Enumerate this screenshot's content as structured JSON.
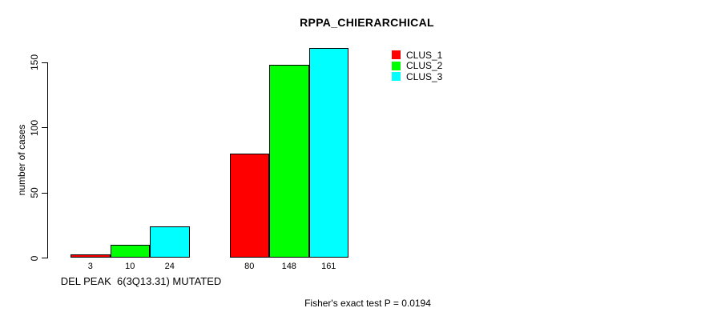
{
  "chart_data": {
    "type": "bar",
    "title": "RPPA_CHIERARCHICAL",
    "ylabel": "number of cases",
    "xlabel": "DEL PEAK  6(3Q13.31) MUTATED",
    "footer": "Fisher's exact test P = 0.0194",
    "ylim": [
      0,
      161
    ],
    "yticks": [
      0,
      50,
      100,
      150
    ],
    "grid": false,
    "legend_position": "top-right",
    "series": [
      {
        "name": "CLUS_1",
        "color": "#ff0000",
        "values": [
          3,
          80
        ]
      },
      {
        "name": "CLUS_2",
        "color": "#00ff00",
        "values": [
          10,
          148
        ]
      },
      {
        "name": "CLUS_3",
        "color": "#00ffff",
        "values": [
          24,
          161
        ]
      }
    ],
    "bar_labels": [
      [
        "3",
        "10",
        "24"
      ],
      [
        "80",
        "148",
        "161"
      ]
    ]
  }
}
